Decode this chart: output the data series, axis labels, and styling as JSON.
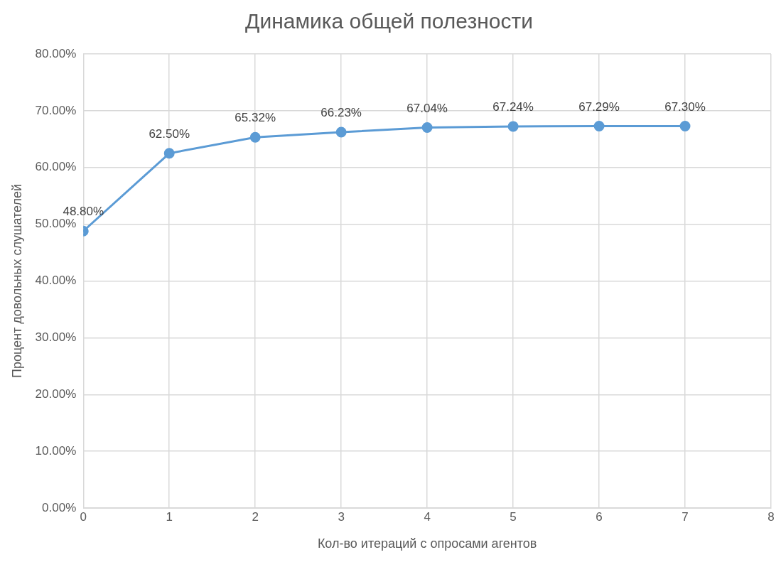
{
  "chart_data": {
    "type": "line",
    "title": "Динамика общей полезности",
    "xlabel": "Кол-во итераций с опросами агентов",
    "ylabel": "Процент довольных слушателей",
    "x": [
      0,
      1,
      2,
      3,
      4,
      5,
      6,
      7
    ],
    "series": [
      {
        "color": "#5b9bd5",
        "values": [
          48.8,
          62.5,
          65.32,
          66.23,
          67.04,
          67.24,
          67.29,
          67.3
        ],
        "value_labels": [
          "48.80%",
          "62.50%",
          "65.32%",
          "66.23%",
          "67.04%",
          "67.24%",
          "67.29%",
          "67.30%"
        ]
      }
    ],
    "xlim": [
      0,
      8
    ],
    "xticks": [
      0,
      1,
      2,
      3,
      4,
      5,
      6,
      7,
      8
    ],
    "ylim": [
      0,
      80
    ],
    "yticks": [
      {
        "value": 0,
        "label": "0.00%"
      },
      {
        "value": 10,
        "label": "10.00%"
      },
      {
        "value": 20,
        "label": "20.00%"
      },
      {
        "value": 30,
        "label": "30.00%"
      },
      {
        "value": 40,
        "label": "40.00%"
      },
      {
        "value": 50,
        "label": "50.00%"
      },
      {
        "value": 60,
        "label": "60.00%"
      },
      {
        "value": 70,
        "label": "70.00%"
      },
      {
        "value": 80,
        "label": "80.00%"
      }
    ],
    "grid": true,
    "legend": false,
    "marker": "circle",
    "line_style": "solid"
  }
}
